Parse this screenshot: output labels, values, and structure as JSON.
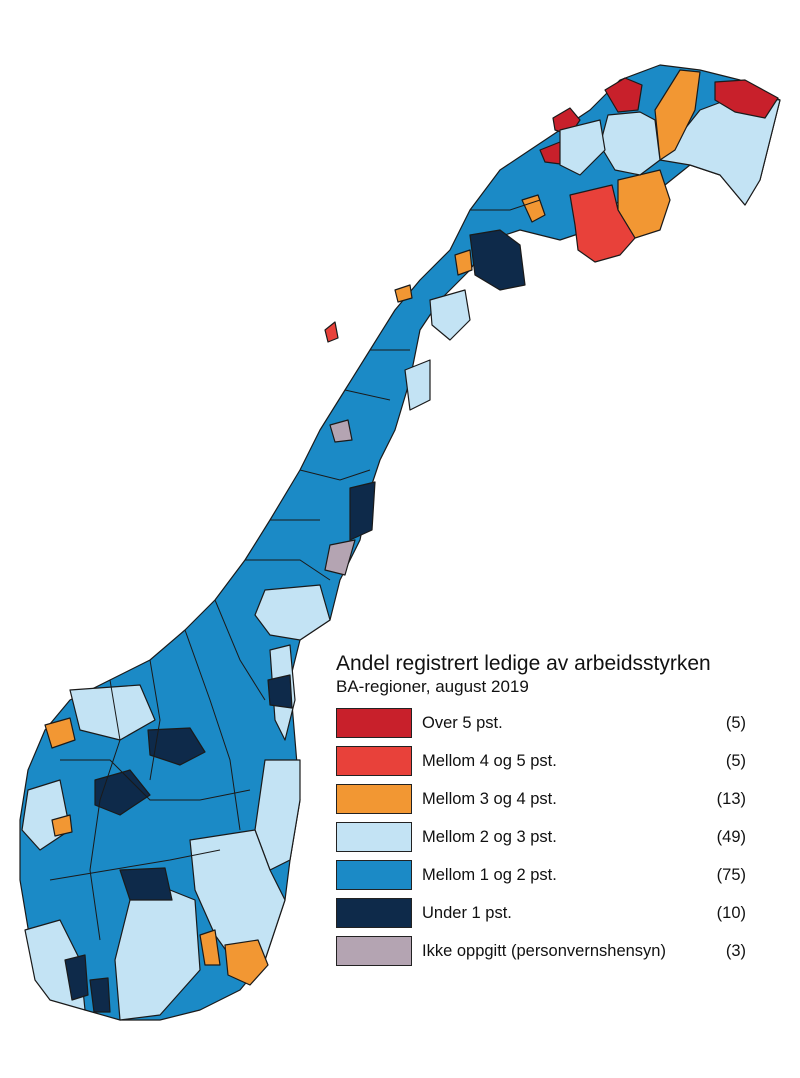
{
  "legend": {
    "title": "Andel registrert ledige av arbeidsstyrken",
    "subtitle": "BA-regioner, august 2019",
    "items": [
      {
        "label": "Over 5 pst.",
        "count": "(5)",
        "color": "#c8202b"
      },
      {
        "label": "Mellom 4 og 5 pst.",
        "count": "(5)",
        "color": "#e8413a"
      },
      {
        "label": "Mellom 3 og 4 pst.",
        "count": "(13)",
        "color": "#f29733"
      },
      {
        "label": "Mellom 2 og 3 pst.",
        "count": "(49)",
        "color": "#c3e3f4"
      },
      {
        "label": "Mellom 1 og 2 pst.",
        "count": "(75)",
        "color": "#1b8ac6"
      },
      {
        "label": "Under 1 pst.",
        "count": "(10)",
        "color": "#0e2a4a"
      },
      {
        "label": "Ikke oppgitt (personvernshensyn)",
        "count": "(3)",
        "color": "#b4a4b2"
      }
    ]
  },
  "map": {
    "base_color": "#1b8ac6",
    "border_color": "#1a1a1a"
  }
}
